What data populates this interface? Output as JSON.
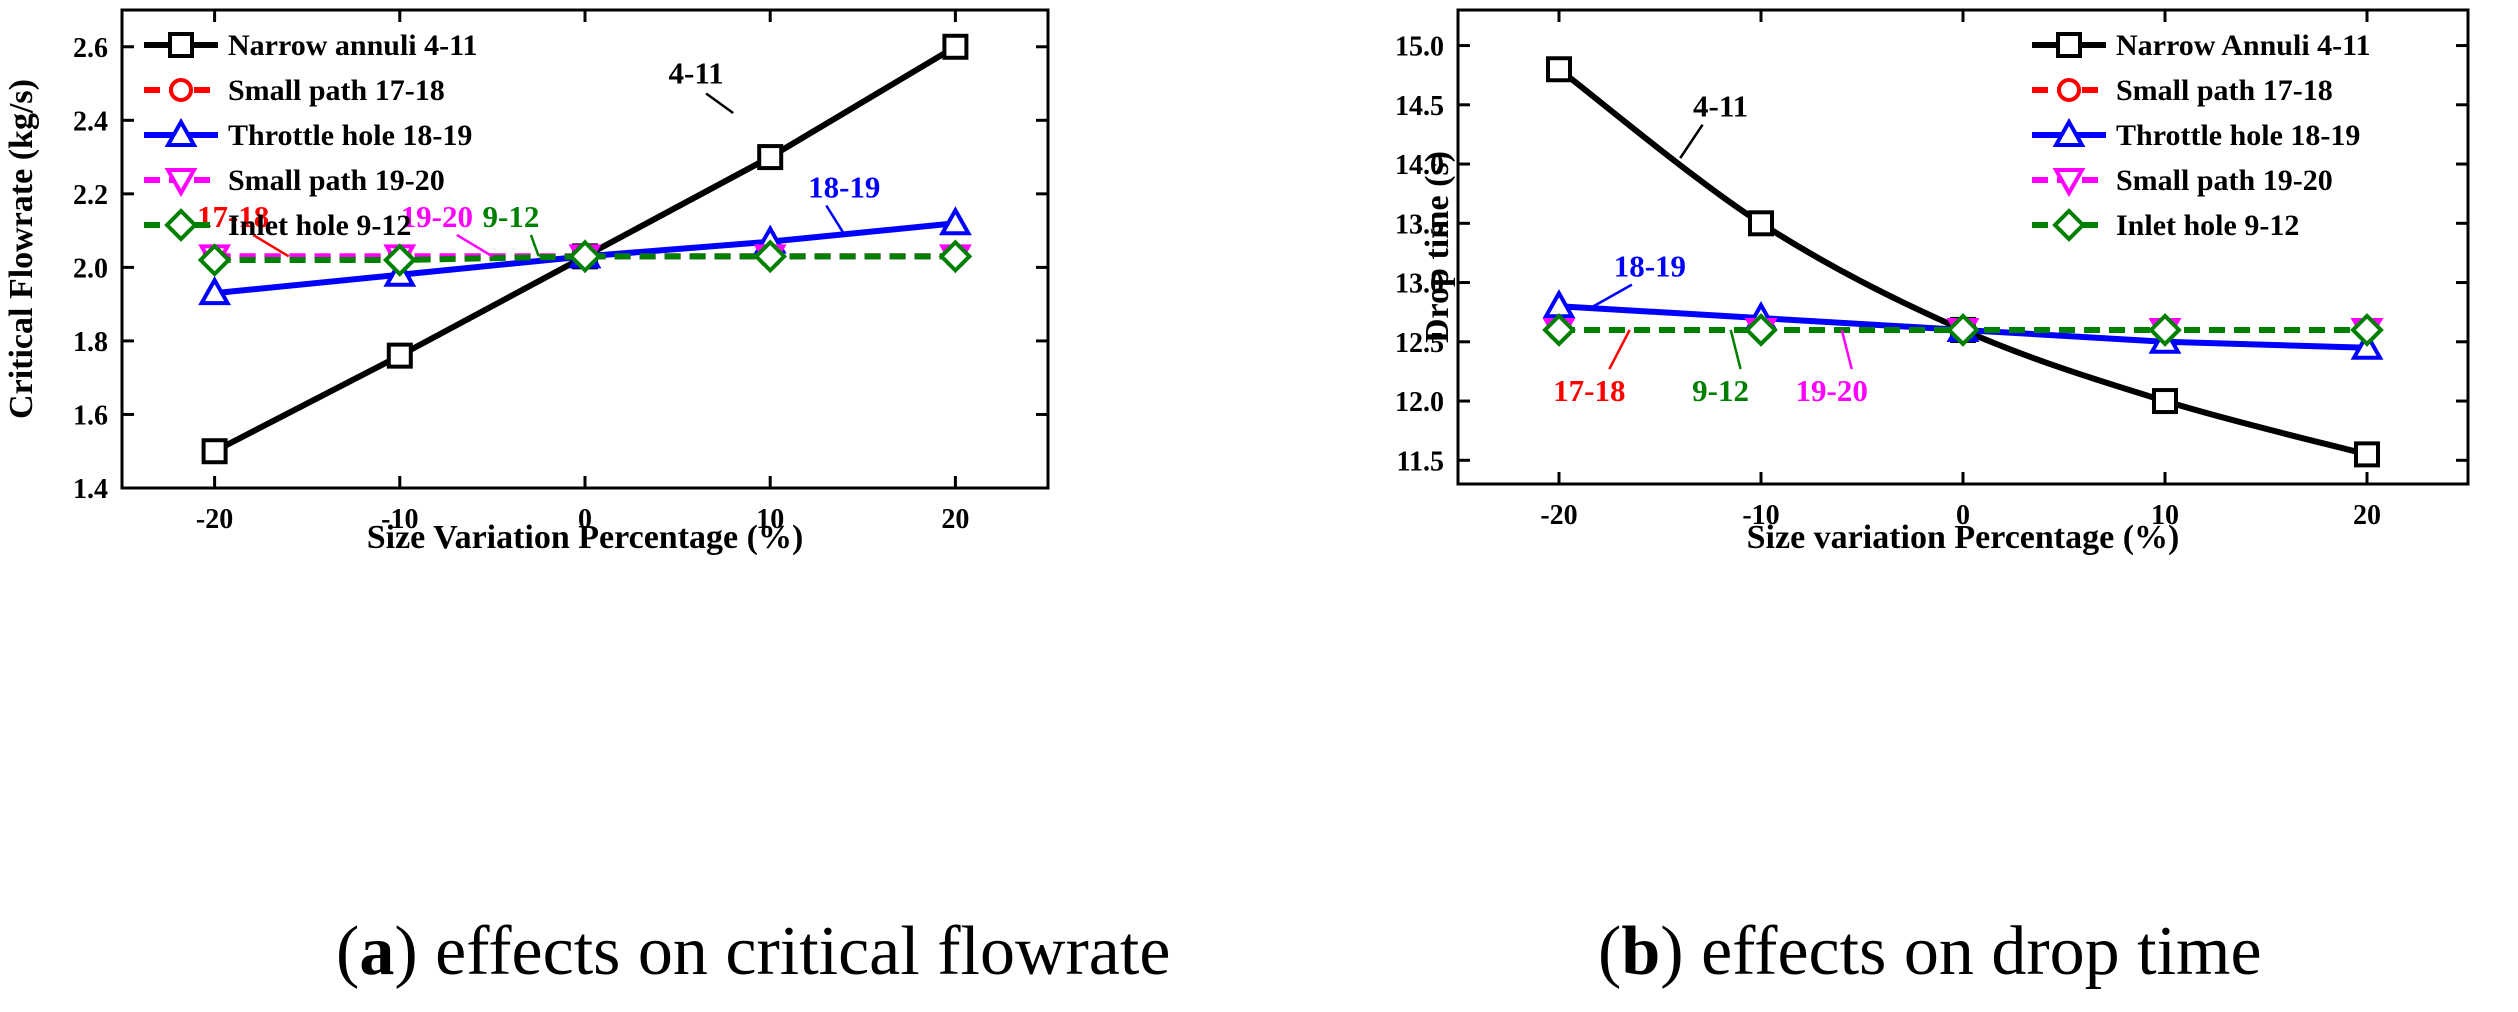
{
  "captions": [
    {
      "open": "(",
      "letter": "a",
      "close": ")",
      "text": " effects on critical flowrate"
    },
    {
      "open": "(",
      "letter": "b",
      "close": ")",
      "text": " effects on drop time"
    }
  ],
  "chart_data": [
    {
      "type": "line",
      "title": "",
      "xlabel": "Size Variation Percentage (%)",
      "ylabel": "Critical Flowrate (kg/s)",
      "xlim": [
        -25,
        25
      ],
      "ylim": [
        1.4,
        2.7
      ],
      "xticks": [
        -20,
        -10,
        0,
        10,
        20
      ],
      "xtick_labels": [
        "-20",
        "-10",
        "0",
        "10",
        "20"
      ],
      "yticks": [
        1.4,
        1.6,
        1.8,
        2.0,
        2.2,
        2.4,
        2.6
      ],
      "ytick_labels": [
        "1.4",
        "1.6",
        "1.8",
        "2.0",
        "2.2",
        "2.4",
        "2.6"
      ],
      "legend_position": "top-left",
      "x": [
        -20,
        -10,
        0,
        10,
        20
      ],
      "series": [
        {
          "name": "Narrow annuli 4-11",
          "color": "#000000",
          "marker": "square",
          "dashed": false,
          "values": [
            1.5,
            1.76,
            2.03,
            2.3,
            2.6
          ]
        },
        {
          "name": "Small path 17-18",
          "color": "#ff0000",
          "marker": "circle",
          "dashed": true,
          "values": [
            2.03,
            2.03,
            2.03,
            2.03,
            2.03
          ]
        },
        {
          "name": "Throttle hole 18-19",
          "color": "#0000ff",
          "marker": "triangle-up",
          "dashed": false,
          "values": [
            1.93,
            1.98,
            2.03,
            2.07,
            2.12
          ]
        },
        {
          "name": "Small path 19-20",
          "color": "#ff00ff",
          "marker": "triangle-down",
          "dashed": true,
          "values": [
            2.03,
            2.03,
            2.03,
            2.03,
            2.03
          ]
        },
        {
          "name": "Inlet hole 9-12",
          "color": "#008000",
          "marker": "diamond",
          "dashed": true,
          "values": [
            2.02,
            2.02,
            2.03,
            2.03,
            2.03
          ]
        }
      ],
      "annotations": [
        {
          "text": "4-11",
          "color": "#000000",
          "at": [
            8,
            2.42
          ],
          "tx": 6,
          "ty": 2.5
        },
        {
          "text": "18-19",
          "color": "#0000ff",
          "at": [
            14,
            2.09
          ],
          "tx": 14,
          "ty": 2.19
        },
        {
          "text": "17-18",
          "color": "#ff0000",
          "at": [
            -16,
            2.03
          ],
          "tx": -19,
          "ty": 2.11
        },
        {
          "text": "19-20",
          "color": "#ff00ff",
          "at": [
            -5,
            2.03
          ],
          "tx": -8,
          "ty": 2.11
        },
        {
          "text": "9-12",
          "color": "#008000",
          "at": [
            -2.5,
            2.03
          ],
          "tx": -4,
          "ty": 2.11
        }
      ]
    },
    {
      "type": "line",
      "title": "",
      "xlabel": "Size variation Percentage (%)",
      "ylabel": "Drop time (s)",
      "xlim": [
        -25,
        25
      ],
      "ylim": [
        11.3,
        15.3
      ],
      "xticks": [
        -20,
        -10,
        0,
        10,
        20
      ],
      "xtick_labels": [
        "-20",
        "-10",
        "0",
        "10",
        "20"
      ],
      "yticks": [
        11.5,
        12.0,
        12.5,
        13.0,
        13.5,
        14.0,
        14.5,
        15.0
      ],
      "ytick_labels": [
        "11.5",
        "12.0",
        "12.5",
        "13.0",
        "13.5",
        "14.0",
        "14.5",
        "15.0"
      ],
      "legend_position": "top-right",
      "x": [
        -20,
        -10,
        0,
        10,
        20
      ],
      "series": [
        {
          "name": "Narrow Annuli 4-11",
          "color": "#000000",
          "marker": "square",
          "dashed": false,
          "smooth": true,
          "values": [
            14.8,
            13.5,
            12.6,
            12.0,
            11.55
          ]
        },
        {
          "name": "Small path 17-18",
          "color": "#ff0000",
          "marker": "circle",
          "dashed": true,
          "values": [
            12.6,
            12.6,
            12.6,
            12.6,
            12.6
          ]
        },
        {
          "name": "Throttle hole 18-19",
          "color": "#0000ff",
          "marker": "triangle-up",
          "dashed": false,
          "values": [
            12.8,
            12.7,
            12.6,
            12.5,
            12.45
          ]
        },
        {
          "name": "Small path 19-20",
          "color": "#ff00ff",
          "marker": "triangle-down",
          "dashed": true,
          "values": [
            12.6,
            12.6,
            12.6,
            12.6,
            12.6
          ]
        },
        {
          "name": "Inlet hole 9-12",
          "color": "#008000",
          "marker": "diamond",
          "dashed": true,
          "values": [
            12.6,
            12.6,
            12.6,
            12.6,
            12.6
          ]
        }
      ],
      "annotations": [
        {
          "text": "4-11",
          "color": "#000000",
          "at": [
            -14,
            14.05
          ],
          "tx": -12,
          "ty": 14.4
        },
        {
          "text": "18-19",
          "color": "#0000ff",
          "at": [
            -18.5,
            12.78
          ],
          "tx": -15.5,
          "ty": 13.05
        },
        {
          "text": "17-18",
          "color": "#ff0000",
          "at": [
            -16.5,
            12.6
          ],
          "tx": -18.5,
          "ty": 12.0
        },
        {
          "text": "9-12",
          "color": "#008000",
          "at": [
            -11.5,
            12.6
          ],
          "tx": -12,
          "ty": 12.0
        },
        {
          "text": "19-20",
          "color": "#ff00ff",
          "at": [
            -6,
            12.6
          ],
          "tx": -6.5,
          "ty": 12.0
        }
      ]
    }
  ]
}
